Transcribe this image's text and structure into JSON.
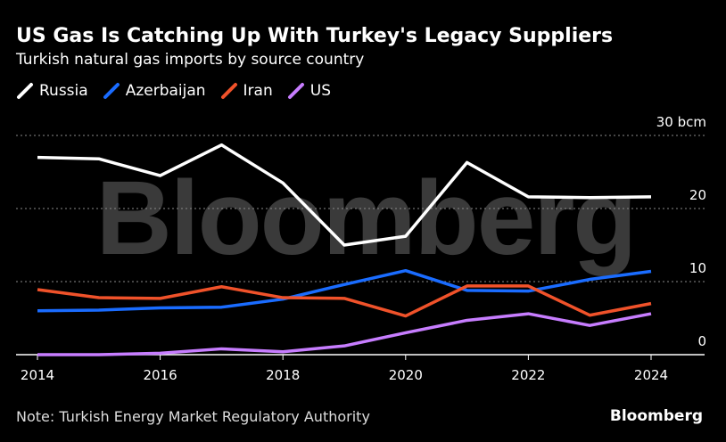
{
  "header": {
    "title": "US Gas Is Catching Up With Turkey's Legacy Suppliers",
    "subtitle": "Turkish natural gas imports by source country"
  },
  "footer": {
    "note": "Note: Turkish Energy Market Regulatory Authority",
    "brand": "Bloomberg"
  },
  "watermark": "Bloomberg",
  "chart_data": {
    "type": "line",
    "title": "US Gas Is Catching Up With Turkey's Legacy Suppliers",
    "subtitle": "Turkish natural gas imports by source country",
    "xlabel": "",
    "ylabel": "",
    "x": [
      2014,
      2015,
      2016,
      2017,
      2018,
      2019,
      2020,
      2021,
      2022,
      2023,
      2024
    ],
    "x_ticks": [
      "2014",
      "2016",
      "2018",
      "2020",
      "2022",
      "2024"
    ],
    "y_ticks": [
      "0",
      "10",
      "20",
      "30 bcm"
    ],
    "ylim": [
      0,
      30
    ],
    "grid": true,
    "legend": "top-left",
    "series": [
      {
        "name": "Russia",
        "color": "#ffffff",
        "values": [
          27.0,
          26.8,
          24.5,
          28.7,
          23.5,
          15.0,
          16.2,
          26.3,
          21.6,
          21.5,
          21.6
        ]
      },
      {
        "name": "Azerbaijan",
        "color": "#1a6cff",
        "values": [
          6.0,
          6.1,
          6.4,
          6.5,
          7.6,
          9.6,
          11.5,
          8.8,
          8.7,
          10.3,
          11.4
        ]
      },
      {
        "name": "Iran",
        "color": "#f0522a",
        "values": [
          8.9,
          7.8,
          7.7,
          9.3,
          7.8,
          7.7,
          5.3,
          9.4,
          9.4,
          5.4,
          7.0
        ]
      },
      {
        "name": "US",
        "color": "#c77dff",
        "values": [
          0.0,
          0.0,
          0.2,
          0.8,
          0.4,
          1.2,
          3.0,
          4.7,
          5.6,
          4.0,
          5.6
        ]
      }
    ]
  }
}
